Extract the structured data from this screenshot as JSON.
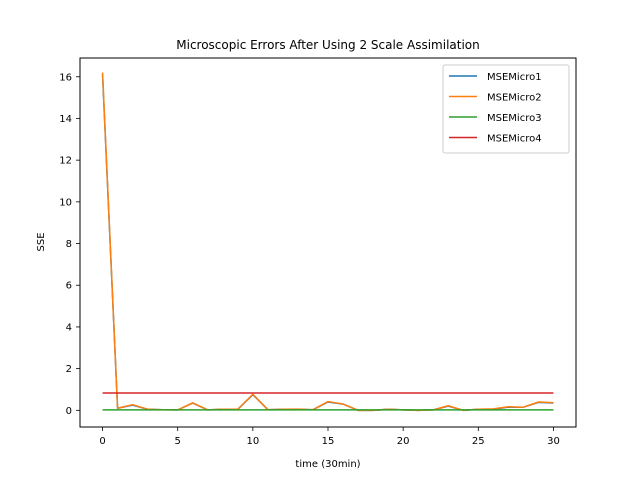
{
  "chart_data": {
    "type": "line",
    "title": "Microscopic Errors After Using 2 Scale Assimilation",
    "xlabel": "time (30min)",
    "ylabel": "SSE",
    "xlim": [
      -1.5,
      31.5
    ],
    "ylim": [
      -0.8,
      16.9
    ],
    "xticks": [
      0,
      5,
      10,
      15,
      20,
      25,
      30
    ],
    "yticks": [
      0,
      2,
      4,
      6,
      8,
      10,
      12,
      14,
      16
    ],
    "grid": false,
    "legend_position": "top-right",
    "x": [
      0,
      1,
      2,
      3,
      4,
      5,
      6,
      7,
      8,
      9,
      10,
      11,
      12,
      13,
      14,
      15,
      16,
      17,
      18,
      19,
      20,
      21,
      22,
      23,
      24,
      25,
      26,
      27,
      28,
      29,
      30
    ],
    "series": [
      {
        "name": "MSEMicro1",
        "color": "#1f77b4",
        "values": [
          16.1,
          0.1,
          0.25,
          0.05,
          0.03,
          0.02,
          0.35,
          0.02,
          0.05,
          0.05,
          0.75,
          0.03,
          0.05,
          0.05,
          0.03,
          0.4,
          0.3,
          0.0,
          0.0,
          0.05,
          0.02,
          0.0,
          0.02,
          0.2,
          0.0,
          0.05,
          0.05,
          0.15,
          0.15,
          0.38,
          0.35
        ]
      },
      {
        "name": "MSEMicro2",
        "color": "#ff7f0e",
        "values": [
          16.2,
          0.1,
          0.27,
          0.05,
          0.03,
          0.02,
          0.36,
          0.02,
          0.05,
          0.05,
          0.77,
          0.03,
          0.05,
          0.06,
          0.03,
          0.42,
          0.3,
          0.0,
          0.0,
          0.05,
          0.02,
          0.0,
          0.02,
          0.22,
          0.0,
          0.05,
          0.07,
          0.17,
          0.15,
          0.4,
          0.37
        ]
      },
      {
        "name": "MSEMicro3",
        "color": "#2ca02c",
        "values": [
          0.02,
          0.02,
          0.02,
          0.02,
          0.02,
          0.02,
          0.02,
          0.02,
          0.02,
          0.02,
          0.02,
          0.02,
          0.02,
          0.02,
          0.02,
          0.02,
          0.02,
          0.02,
          0.02,
          0.02,
          0.02,
          0.02,
          0.02,
          0.02,
          0.02,
          0.02,
          0.02,
          0.02,
          0.02,
          0.02,
          0.02
        ]
      },
      {
        "name": "MSEMicro4",
        "color": "#d62728",
        "values": [
          0.83,
          0.83,
          0.83,
          0.83,
          0.83,
          0.83,
          0.83,
          0.83,
          0.83,
          0.83,
          0.83,
          0.83,
          0.83,
          0.83,
          0.83,
          0.83,
          0.83,
          0.83,
          0.83,
          0.83,
          0.83,
          0.83,
          0.83,
          0.83,
          0.83,
          0.83,
          0.83,
          0.83,
          0.83,
          0.83,
          0.83
        ]
      }
    ]
  }
}
